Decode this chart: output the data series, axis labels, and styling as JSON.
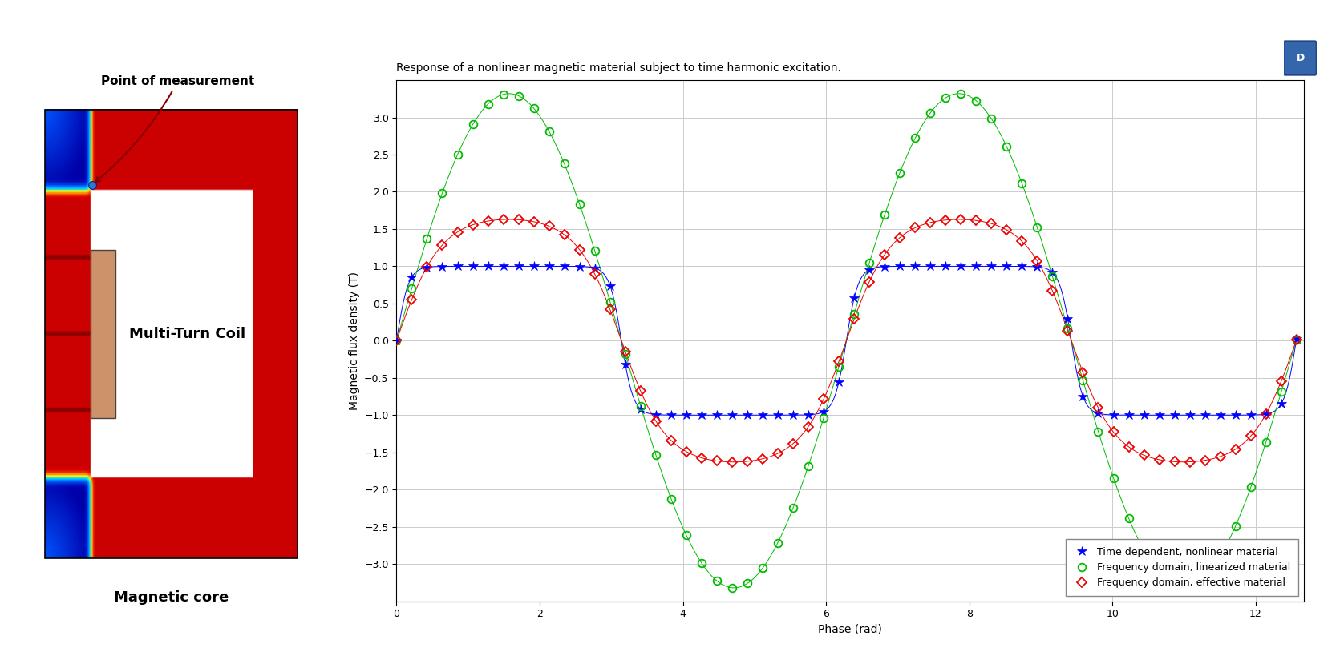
{
  "title": "Response of a nonlinear magnetic material subject to time harmonic excitation.",
  "xlabel": "Phase (rad)",
  "ylabel": "Magnetic flux density (T)",
  "ylim": [
    -3.5,
    3.5
  ],
  "yticks": [
    -3,
    -2.5,
    -2,
    -1.5,
    -1,
    -0.5,
    0,
    0.5,
    1,
    1.5,
    2,
    2.5,
    3
  ],
  "xticks": [
    0,
    2,
    4,
    6,
    8,
    10,
    12
  ],
  "legend_labels": [
    "Time dependent, nonlinear material",
    "Frequency domain, linearized material",
    "Frequency domain, effective material"
  ],
  "blue_color": "#0000FF",
  "green_color": "#00BB00",
  "red_color": "#EE0000",
  "background_color": "#FFFFFF",
  "grid_color": "#CCCCCC",
  "annotation_text": "Point of measurement",
  "label_coil": "Multi-Turn Coil",
  "label_core": "Magnetic core",
  "blue_amplitude": 1.0,
  "green_amplitude": 3.32,
  "red_amplitude": 1.8,
  "n_points_dense": 500,
  "n_points_markers": 60,
  "x_max_rad": 12.57,
  "title_fontsize": 10,
  "label_fontsize": 10,
  "tick_fontsize": 9,
  "legend_fontsize": 9
}
